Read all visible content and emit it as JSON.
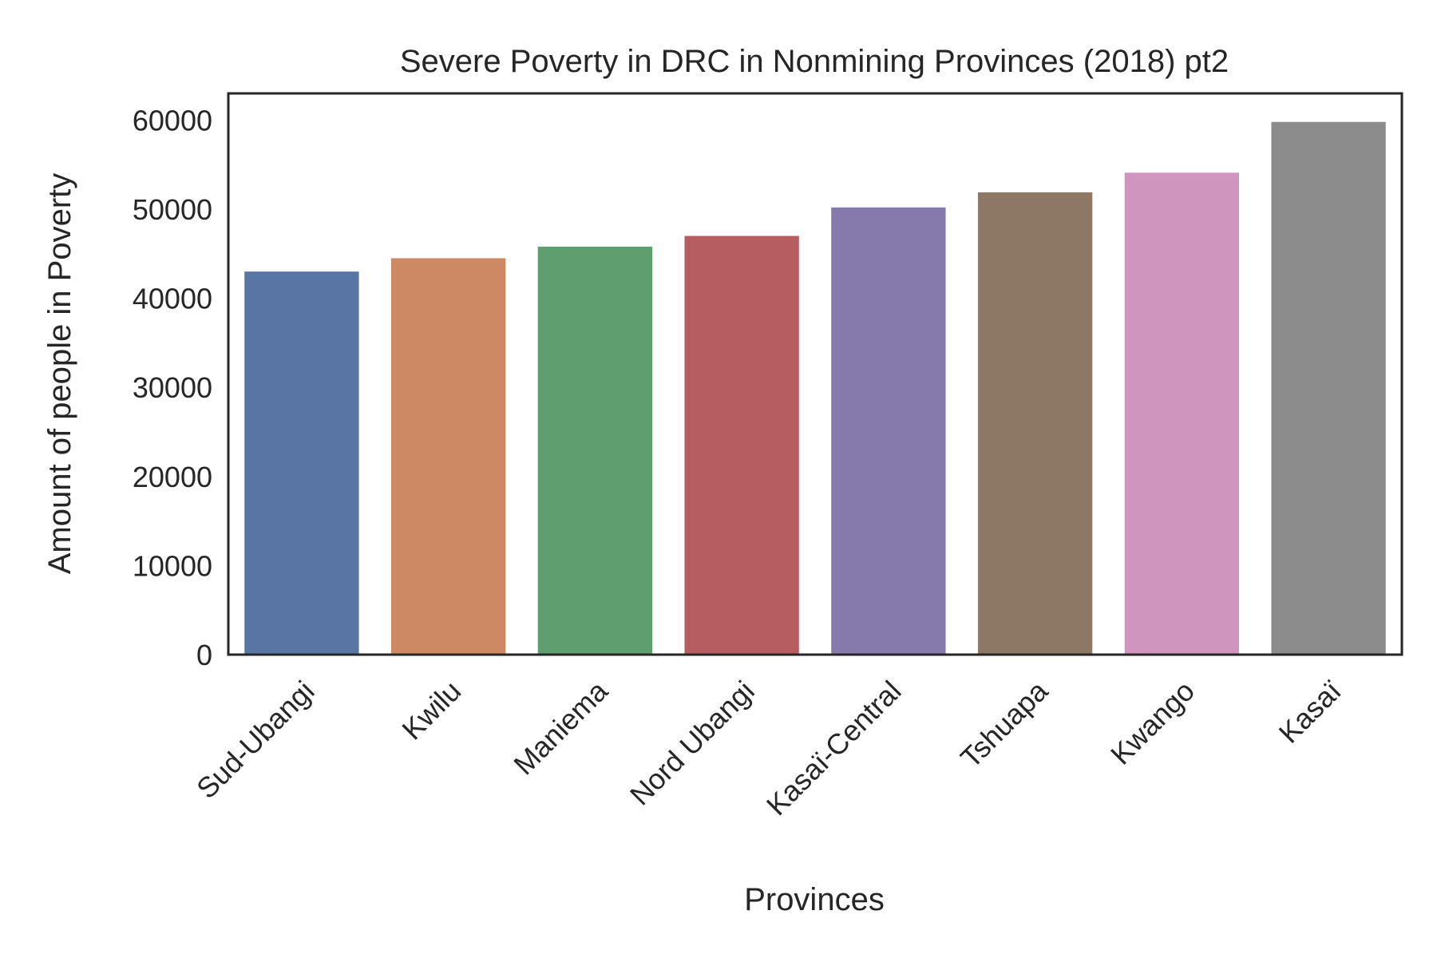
{
  "chart_data": {
    "type": "bar",
    "title": "Severe Poverty in DRC in Nonmining Provinces (2018) pt2",
    "xlabel": "Provinces",
    "ylabel": "Amount of people in Poverty",
    "categories": [
      "Sud-Ubangi",
      "Kwilu",
      "Maniema",
      "Nord Ubangi",
      "Kasaï-Central",
      "Tshuapa",
      "Kwango",
      "Kasaï"
    ],
    "values": [
      43000,
      44500,
      45800,
      47000,
      50200,
      51900,
      54100,
      59800
    ],
    "colors": [
      "#5975a4",
      "#cc8963",
      "#5f9e6e",
      "#b55d60",
      "#857aab",
      "#8d7866",
      "#d095bf",
      "#8c8c8c"
    ],
    "ylim": [
      0,
      63000
    ],
    "yticks": [
      0,
      10000,
      20000,
      30000,
      40000,
      50000,
      60000
    ],
    "x_tick_rotation": 45,
    "grid": false,
    "legend": "none"
  }
}
